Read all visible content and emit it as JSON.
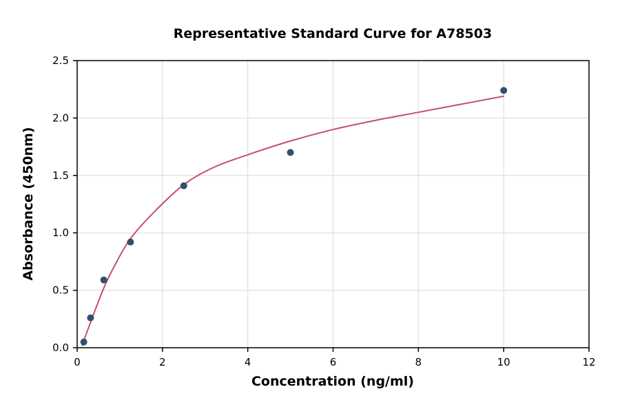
{
  "chart_data": {
    "type": "scatter",
    "title": "Representative Standard Curve for A78503",
    "xlabel": "Concentration (ng/ml)",
    "ylabel": "Absorbance (450nm)",
    "xlim": [
      0,
      12
    ],
    "ylim": [
      0,
      2.5
    ],
    "grid": true,
    "legend": "none",
    "x_ticks": [
      0,
      2,
      4,
      6,
      8,
      10,
      12
    ],
    "x_tick_labels": [
      "0",
      "2",
      "4",
      "6",
      "8",
      "10",
      "12"
    ],
    "y_ticks": [
      0,
      0.5,
      1.0,
      1.5,
      2.0,
      2.5
    ],
    "y_tick_labels": [
      "0.0",
      "0.5",
      "1.0",
      "1.5",
      "2.0",
      "2.5"
    ],
    "points": {
      "x": [
        0.156,
        0.313,
        0.625,
        1.25,
        2.5,
        5,
        10
      ],
      "y": [
        0.05,
        0.26,
        0.59,
        0.92,
        1.41,
        1.7,
        2.24
      ]
    },
    "fit_curve": [
      [
        0.12,
        0.02
      ],
      [
        0.156,
        0.06
      ],
      [
        0.313,
        0.22
      ],
      [
        0.625,
        0.52
      ],
      [
        0.9,
        0.73
      ],
      [
        1.25,
        0.95
      ],
      [
        1.8,
        1.18
      ],
      [
        2.5,
        1.42
      ],
      [
        3.2,
        1.57
      ],
      [
        4.0,
        1.68
      ],
      [
        5.0,
        1.8
      ],
      [
        6.0,
        1.9
      ],
      [
        7.0,
        1.98
      ],
      [
        8.0,
        2.05
      ],
      [
        9.0,
        2.12
      ],
      [
        10.0,
        2.19
      ]
    ],
    "colors": {
      "points": "#31506e",
      "curve": "#c44e6c",
      "grid": "#d9d9d9",
      "axis": "#000000",
      "text": "#000000",
      "background": "#ffffff"
    }
  }
}
